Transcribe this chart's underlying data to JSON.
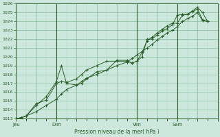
{
  "xlabel": "Pression niveau de la mer( hPa )",
  "ylim": [
    1013,
    1026
  ],
  "yticks": [
    1013,
    1014,
    1015,
    1016,
    1017,
    1018,
    1019,
    1020,
    1021,
    1022,
    1023,
    1024,
    1025,
    1026
  ],
  "bg_color": "#cce8dc",
  "grid_major_color": "#88bb99",
  "grid_minor_color": "#aaddbb",
  "line_color": "#2a5e2a",
  "day_labels": [
    "Jeu",
    "Dim",
    "Ven",
    "Sam"
  ],
  "day_positions": [
    0,
    16,
    48,
    64
  ],
  "xlim": [
    0,
    80
  ],
  "line1_x": [
    0,
    2,
    4,
    8,
    12,
    16,
    18,
    20,
    24,
    26,
    28,
    32,
    36,
    40,
    44,
    46,
    48,
    50,
    52,
    54,
    56,
    58,
    60,
    62,
    64,
    66,
    68,
    70,
    72,
    74,
    76
  ],
  "line1_y": [
    1013.0,
    1013.1,
    1013.3,
    1014.7,
    1015.1,
    1017.0,
    1017.2,
    1017.1,
    1017.5,
    1018.0,
    1018.5,
    1019.0,
    1019.5,
    1019.5,
    1019.5,
    1019.3,
    1019.5,
    1020.5,
    1021.8,
    1022.2,
    1022.7,
    1023.1,
    1023.5,
    1023.8,
    1023.8,
    1024.7,
    1024.8,
    1025.2,
    1025.6,
    1025.0,
    1024.0
  ],
  "line2_x": [
    0,
    2,
    4,
    8,
    12,
    16,
    18,
    20,
    24,
    26,
    28,
    32,
    36,
    40,
    44,
    46,
    48,
    50,
    52,
    54,
    56,
    58,
    60,
    62,
    64,
    66,
    68,
    70,
    72,
    74,
    76
  ],
  "line2_y": [
    1013.0,
    1013.1,
    1013.3,
    1014.5,
    1015.5,
    1017.2,
    1019.0,
    1017.0,
    1016.8,
    1017.0,
    1017.5,
    1018.3,
    1018.5,
    1019.6,
    1019.6,
    1019.3,
    1019.5,
    1020.0,
    1022.0,
    1022.0,
    1022.5,
    1022.9,
    1023.2,
    1023.6,
    1024.7,
    1024.8,
    1024.8,
    1025.1,
    1025.4,
    1024.2,
    1024.0
  ],
  "line3_x": [
    0,
    2,
    4,
    8,
    12,
    16,
    18,
    20,
    24,
    26,
    28,
    32,
    36,
    40,
    44,
    46,
    48,
    50,
    52,
    54,
    56,
    58,
    60,
    62,
    64,
    66,
    68,
    70,
    72,
    74,
    76
  ],
  "line3_y": [
    1013.0,
    1013.1,
    1013.3,
    1013.8,
    1014.5,
    1015.2,
    1015.8,
    1016.3,
    1016.8,
    1017.2,
    1017.6,
    1018.0,
    1018.5,
    1019.0,
    1019.4,
    1019.8,
    1020.2,
    1020.6,
    1021.0,
    1021.4,
    1021.9,
    1022.3,
    1022.7,
    1023.0,
    1023.4,
    1024.0,
    1024.3,
    1024.6,
    1025.0,
    1024.1,
    1024.0
  ]
}
